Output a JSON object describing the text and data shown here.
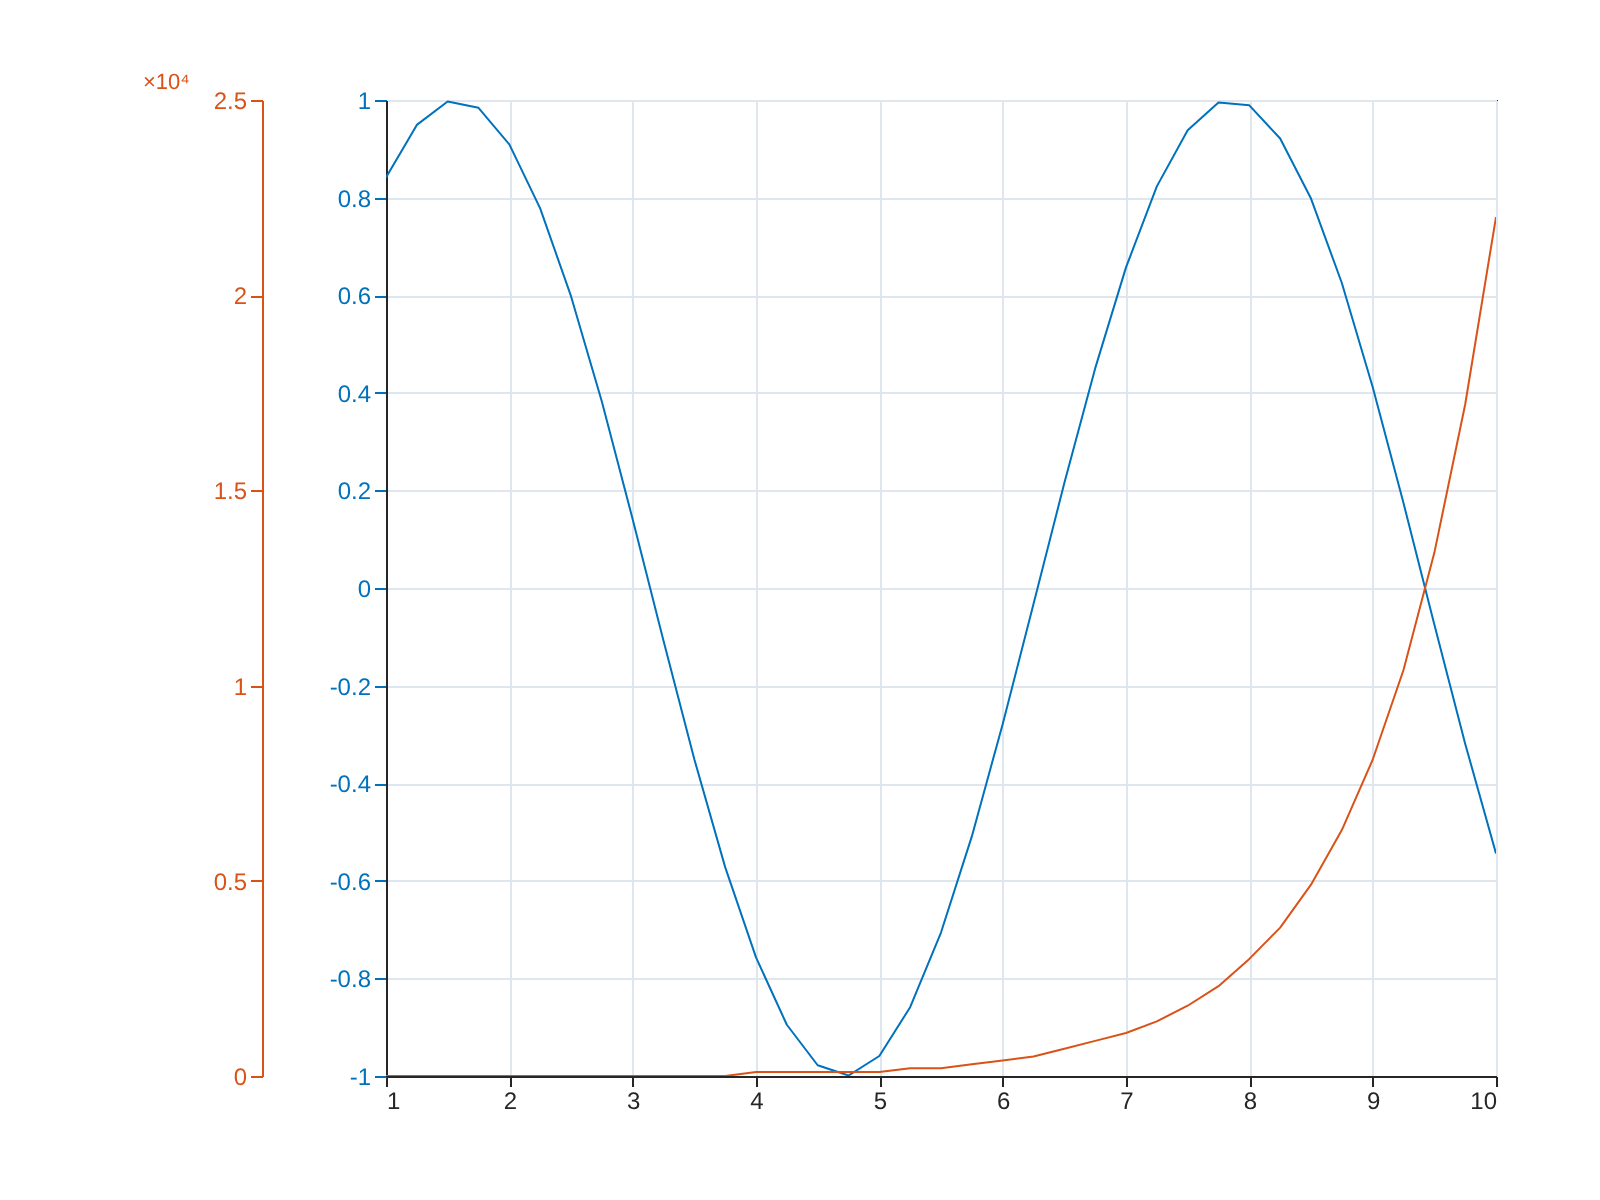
{
  "chart_data": {
    "type": "line",
    "x": [
      1,
      1.25,
      1.5,
      1.75,
      2,
      2.25,
      2.5,
      2.75,
      3,
      3.25,
      3.5,
      3.75,
      4,
      4.25,
      4.5,
      4.75,
      5,
      5.25,
      5.5,
      5.75,
      6,
      6.25,
      6.5,
      6.75,
      7,
      7.25,
      7.5,
      7.75,
      8,
      8.25,
      8.5,
      8.75,
      9,
      9.25,
      9.5,
      9.75,
      10
    ],
    "series": [
      {
        "color": "#0072bd",
        "values": [
          0.841,
          0.949,
          0.997,
          0.984,
          0.909,
          0.778,
          0.598,
          0.382,
          0.141,
          -0.108,
          -0.351,
          -0.572,
          -0.757,
          -0.895,
          -0.978,
          -0.999,
          -0.959,
          -0.859,
          -0.706,
          -0.509,
          -0.279,
          -0.033,
          0.215,
          0.45,
          0.657,
          0.823,
          0.938,
          0.995,
          0.989,
          0.921,
          0.798,
          0.625,
          0.412,
          0.174,
          -0.075,
          -0.319,
          -0.544
        ]
      },
      {
        "color": "#d95319",
        "axis": "y2",
        "values": [
          0,
          0,
          0,
          0,
          0,
          0,
          0,
          0,
          0,
          0,
          0,
          0,
          0.01,
          0.01,
          0.01,
          0.01,
          0.01,
          0.02,
          0.02,
          0.03,
          0.04,
          0.05,
          0.07,
          0.09,
          0.11,
          0.14,
          0.18,
          0.23,
          0.3,
          0.38,
          0.49,
          0.63,
          0.81,
          1.04,
          1.34,
          1.72,
          2.2
        ]
      }
    ],
    "xlim": [
      1,
      10
    ],
    "xticks": [
      1,
      2,
      3,
      4,
      5,
      6,
      7,
      8,
      9,
      10
    ],
    "ylim": [
      -1,
      1
    ],
    "yticks": [
      -1,
      -0.8,
      -0.6,
      -0.4,
      -0.2,
      0,
      0.2,
      0.4,
      0.6,
      0.8,
      1
    ],
    "y2lim": [
      0,
      2.5
    ],
    "y2ticks": [
      0,
      0.5,
      1,
      1.5,
      2,
      2.5
    ],
    "annotations": [
      "×10⁴"
    ],
    "grid": true
  }
}
